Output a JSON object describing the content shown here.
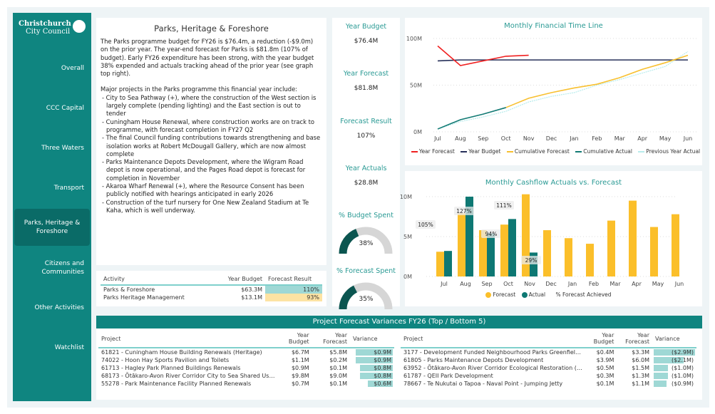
{
  "logo": {
    "line1": "Christchurch",
    "line2": "City Council"
  },
  "sidebar": {
    "items": [
      {
        "label": "Overall"
      },
      {
        "label": "CCC Capital"
      },
      {
        "label": "Three Waters"
      },
      {
        "label": "Transport"
      },
      {
        "label": "Parks, Heritage & Foreshore",
        "active": true
      },
      {
        "label": "Citizens and Communities"
      },
      {
        "label": "Other Activities"
      },
      {
        "label": "Watchlist"
      }
    ]
  },
  "summary": {
    "title": "Parks, Heritage & Foreshore",
    "para1": "The Parks programme budget for FY26 is $76.4m, a reduction (-$9.0m) on the prior year.  The year-end forecast for Parks is $81.8m (107% of budget).  Early FY26 expenditure has been strong, with the year budget 38% expended and actuals tracking ahead of the prior year (see graph top right).",
    "para2": "Major projects in the Parks programme this financial year include:",
    "bullets": [
      "- City to Sea Pathway (+), where the construction of the West section is largely complete (pending lighting) and the East section is out to tender",
      "- Cuningham House Renewal, where construction works are on track to programme, with forecast completion in FY27 Q2",
      "- The final Council funding contributions towards strengthening and base isolation works at Robert McDougall Gallery, which are now almost complete",
      "- Parks Maintenance Depots Development, where the Wigram Road depot is now operational, and the Pages Road depot is forecast for completion in November",
      "- Akaroa Wharf Renewal (+), where the Resource Consent has been publicly notified with hearings anticipated in early 2026",
      "- Construction of the turf nursery for One New Zealand Stadium at Te Kaha, which is well underway."
    ]
  },
  "kpis": [
    {
      "label": "Year Budget",
      "value": "$76.4M"
    },
    {
      "label": "Year Forecast",
      "value": "$81.8M"
    },
    {
      "label": "Forecast Result",
      "value": "107%"
    },
    {
      "label": "Year Actuals",
      "value": "$28.8M"
    }
  ],
  "gauges": [
    {
      "label": "% Budget Spent",
      "value_text": "38%",
      "value": 0.38
    },
    {
      "label": "% Forecast Spent",
      "value_text": "35%",
      "value": 0.35
    }
  ],
  "activity": {
    "headers": [
      "Activity",
      "Year Budget",
      "Forecast Result"
    ],
    "rows": [
      [
        "Parks & Foreshore",
        "$63.3M",
        "110%"
      ],
      [
        "Parks Heritage Management",
        "$13.1M",
        "93%"
      ]
    ]
  },
  "chart_data": [
    {
      "type": "line",
      "title": "Monthly Financial Time Line",
      "categories": [
        "Jul",
        "Aug",
        "Sep",
        "Oct",
        "Nov",
        "Dec",
        "Jan",
        "Feb",
        "Mar",
        "Apr",
        "May",
        "Jun"
      ],
      "yticks": [
        "0M",
        "50M",
        "100M"
      ],
      "ylim": [
        0,
        100
      ],
      "series": [
        {
          "name": "Year Forecast",
          "color": "#f02020",
          "values": [
            92,
            71,
            76,
            81,
            82,
            null,
            null,
            null,
            null,
            null,
            null,
            null
          ]
        },
        {
          "name": "Year Budget",
          "color": "#27305a",
          "values": [
            76,
            77,
            77,
            77,
            77,
            77,
            77,
            77,
            77,
            77,
            77,
            77
          ]
        },
        {
          "name": "Cumulative Forecast",
          "color": "#f8c030",
          "values": [
            null,
            null,
            null,
            26,
            36,
            42,
            47,
            51,
            58,
            67,
            74,
            82
          ]
        },
        {
          "name": "Cumulative Actual",
          "color": "#117a74",
          "values": [
            3,
            13,
            19,
            26,
            null,
            null,
            null,
            null,
            null,
            null,
            null,
            null
          ]
        },
        {
          "name": "Previous Year Actual",
          "color": "#b8ecec",
          "values": [
            3,
            11,
            16,
            22,
            32,
            38,
            42,
            50,
            56,
            63,
            70,
            86
          ]
        }
      ]
    },
    {
      "type": "bar",
      "title": "Monthly Cashflow Actuals vs. Forecast",
      "categories": [
        "Jul",
        "Aug",
        "Sep",
        "Oct",
        "Nov",
        "Dec",
        "Jan",
        "Feb",
        "Mar",
        "Apr",
        "May",
        "Jun"
      ],
      "yticks": [
        "0M",
        "5M",
        "10M"
      ],
      "ylim": [
        0,
        10.5
      ],
      "series": [
        {
          "name": "Forecast",
          "color": "#fbbf2a",
          "values": [
            3.1,
            7.9,
            5.8,
            6.5,
            10.3,
            5.8,
            4.8,
            4.1,
            7.0,
            9.5,
            6.2,
            7.8
          ]
        },
        {
          "name": "Actual",
          "color": "#0e7873",
          "values": [
            3.2,
            10.0,
            5.4,
            7.2,
            3.0,
            null,
            null,
            null,
            null,
            null,
            null,
            null
          ]
        }
      ],
      "pct_labels": [
        "105%",
        "127%",
        "94%",
        "111%",
        "29%"
      ],
      "pct_legend": "% Forecast Achieved"
    }
  ],
  "variance": {
    "title": "Project Forecast Variances FY26 (Top / Bottom 5)",
    "headers": [
      "Project",
      "Year Budget",
      "Year Forecast",
      "Variance"
    ],
    "top": [
      [
        "61821 - Cuningham House Building Renewals (Heritage)",
        "$6.7M",
        "$5.8M",
        "$0.9M",
        0.9
      ],
      [
        "74022 - Hoon Hay Sports Pavilion and Toilets",
        "$1.1M",
        "$0.2M",
        "$0.9M",
        0.9
      ],
      [
        "61713 - Hagley Park Planned Buildings Renewals",
        "$0.9M",
        "$0.1M",
        "$0.8M",
        0.8
      ],
      [
        "68173 - Ōtākaro-Avon River Corridor City to Sea Shared Us…",
        "$9.8M",
        "$9.0M",
        "$0.8M",
        0.8
      ],
      [
        "55278 - Park Maintenance Facility Planned Renewals",
        "$0.7M",
        "$0.1M",
        "$0.6M",
        0.6
      ]
    ],
    "bottom": [
      [
        "3177 - Development Funded Neighbourhood Parks Greenfiel…",
        "$0.4M",
        "$3.3M",
        "($2.9M)",
        2.9
      ],
      [
        "61805 - Parks Maintenance Depots Development",
        "$3.9M",
        "$6.0M",
        "($2.1M)",
        2.1
      ],
      [
        "63952 - Ōtākaro-Avon River Corridor Ecological Restoration (…",
        "$0.5M",
        "$1.5M",
        "($1.0M)",
        1.0
      ],
      [
        "61787 - QEII Park Development",
        "$0.3M",
        "$1.3M",
        "($1.0M)",
        1.0
      ],
      [
        "78667 - Te Nukutai o Tapoa - Naval Point - Jumping Jetty",
        "$0.1M",
        "$1.1M",
        "($0.9M)",
        0.9
      ]
    ]
  }
}
